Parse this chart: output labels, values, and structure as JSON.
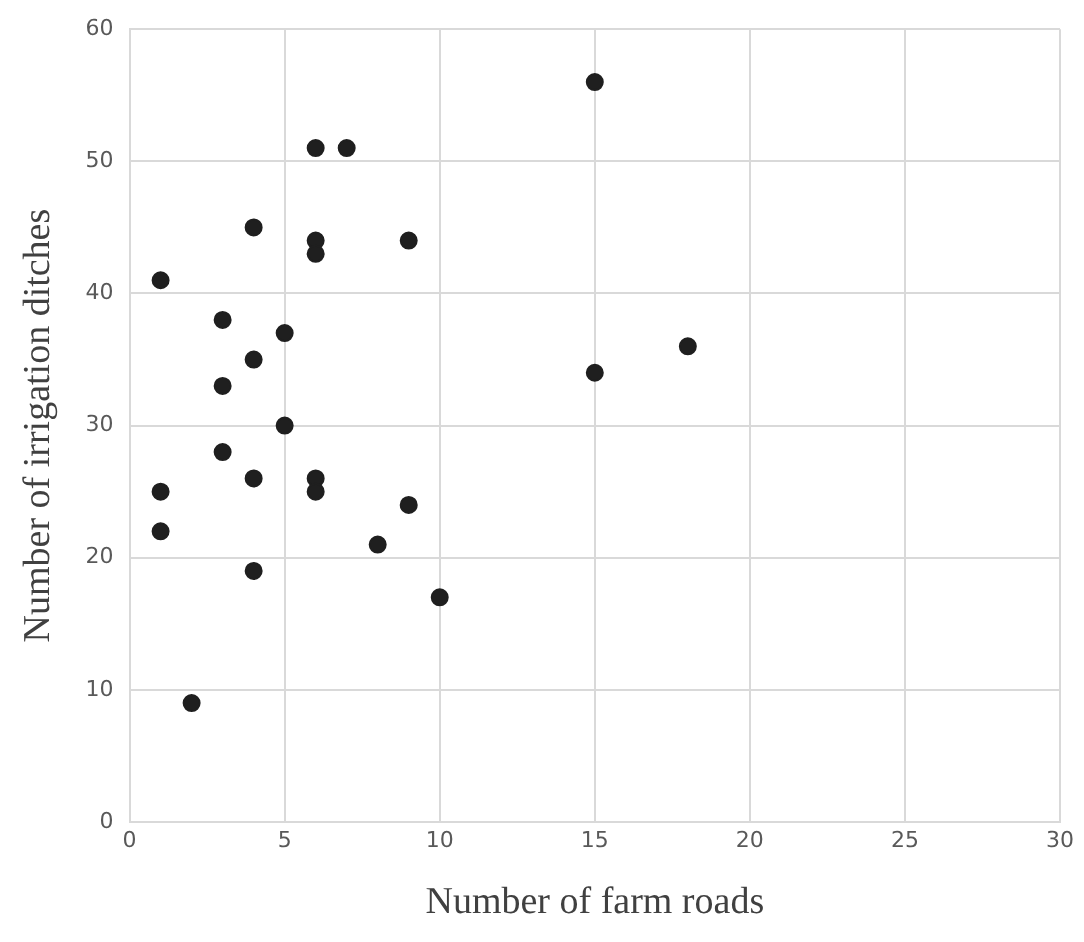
{
  "chart_data": {
    "type": "scatter",
    "xlabel": "Number of farm roads",
    "ylabel": "Number of irrigation ditches",
    "x": [
      15,
      6,
      7,
      4,
      6,
      6,
      9,
      1,
      3,
      5,
      4,
      3,
      15,
      18,
      5,
      3,
      1,
      4,
      6,
      6,
      1,
      9,
      8,
      4,
      10,
      2
    ],
    "values": [
      56,
      51,
      51,
      45,
      44,
      43,
      44,
      41,
      38,
      37,
      35,
      33,
      34,
      36,
      30,
      28,
      25,
      26,
      26,
      25,
      22,
      24,
      21,
      19,
      17,
      9
    ],
    "color": "#1f1f1f",
    "marker": "circle",
    "xlim": [
      0,
      30
    ],
    "xticks": [
      0,
      5,
      10,
      15,
      20,
      25,
      30
    ],
    "ylim": [
      0,
      60
    ],
    "yticks": [
      0,
      10,
      20,
      30,
      40,
      50,
      60
    ],
    "grid": true,
    "legend": false
  }
}
